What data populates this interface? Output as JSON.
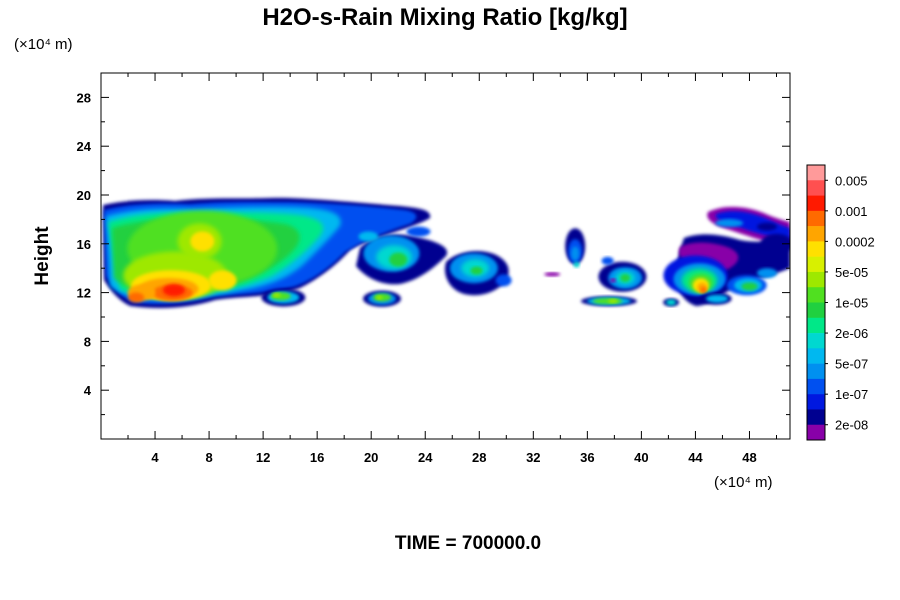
{
  "chart_data": {
    "type": "heatmap",
    "title": "H2O-s-Rain Mixing Ratio [kg/kg]",
    "xlabel": "",
    "ylabel": "Height",
    "x_unit_label": "(×10⁴ m)",
    "y_unit_label": "(×10⁴ m)",
    "xlim": [
      0,
      51
    ],
    "ylim": [
      0,
      30
    ],
    "x_ticks": [
      4,
      8,
      12,
      16,
      20,
      24,
      28,
      32,
      36,
      40,
      44,
      48
    ],
    "y_ticks": [
      4,
      8,
      12,
      16,
      20,
      24,
      28
    ],
    "time_label": "TIME = 700000.0",
    "colorbar": {
      "labels": [
        "0.005",
        "0.001",
        "0.0002",
        "5e-05",
        "1e-05",
        "2e-06",
        "5e-07",
        "1e-07",
        "2e-08"
      ],
      "colors": [
        "#ff9a9a",
        "#ff5050",
        "#ff1a00",
        "#ff6a00",
        "#ffa500",
        "#ffe000",
        "#d8f000",
        "#9ee800",
        "#50e020",
        "#20d040",
        "#00e888",
        "#00d8d0",
        "#00b8f0",
        "#0090f0",
        "#0050f0",
        "#0018e0",
        "#000090",
        "#8800a8"
      ]
    },
    "regions": [
      {
        "name": "cloud-main",
        "x": [
          0.2,
          24.5
        ],
        "y": [
          10.5,
          19.8
        ],
        "max_level": "0.005"
      },
      {
        "name": "cloud-mid-a",
        "x": [
          18.8,
          26.0
        ],
        "y": [
          13.2,
          17.8
        ],
        "max_level": "1e-05"
      },
      {
        "name": "cloud-mid-b",
        "x": [
          25.0,
          30.5
        ],
        "y": [
          12.0,
          16.0
        ],
        "max_level": "1e-05"
      },
      {
        "name": "cloud-low-a",
        "x": [
          12.0,
          15.2
        ],
        "y": [
          10.8,
          12.6
        ],
        "max_level": "5e-05"
      },
      {
        "name": "cloud-low-b",
        "x": [
          19.3,
          22.3
        ],
        "y": [
          10.8,
          12.4
        ],
        "max_level": "5e-05"
      },
      {
        "name": "cloud-east-a",
        "x": [
          34.0,
          36.2
        ],
        "y": [
          13.5,
          17.2
        ],
        "max_level": "5e-07"
      },
      {
        "name": "cloud-east-b",
        "x": [
          36.8,
          40.2
        ],
        "y": [
          12.0,
          15.0
        ],
        "max_level": "1e-05"
      },
      {
        "name": "cloud-east-low",
        "x": [
          35.5,
          39.8
        ],
        "y": [
          10.8,
          11.8
        ],
        "max_level": "5e-05"
      },
      {
        "name": "cloud-east-c",
        "x": [
          40.6,
          51.0
        ],
        "y": [
          10.8,
          19.0
        ],
        "max_level": "0.001"
      }
    ]
  }
}
